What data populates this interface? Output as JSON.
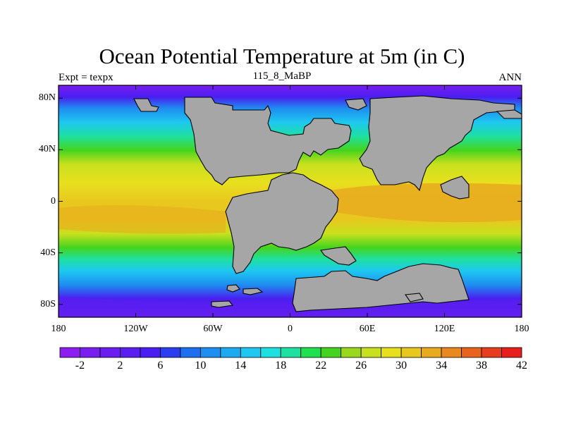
{
  "title": "Ocean Potential Temperature at 5m (in C)",
  "subtitle_left": "Expt = texpx",
  "subtitle_center": "115_8_MaBP",
  "subtitle_right": "ANN",
  "lat_ticks": [
    {
      "label": "80N",
      "lat": 80
    },
    {
      "label": "40N",
      "lat": 40
    },
    {
      "label": "0",
      "lat": 0
    },
    {
      "label": "40S",
      "lat": -40
    },
    {
      "label": "80S",
      "lat": -80
    }
  ],
  "lon_ticks": [
    {
      "label": "180",
      "lon": -180
    },
    {
      "label": "120W",
      "lon": -120
    },
    {
      "label": "60W",
      "lon": -60
    },
    {
      "label": "0",
      "lon": 0
    },
    {
      "label": "60E",
      "lon": 60
    },
    {
      "label": "120E",
      "lon": 120
    },
    {
      "label": "180",
      "lon": 180
    }
  ],
  "colorbar": {
    "colors": [
      "#8c1ef0",
      "#7a1ef0",
      "#6a1ef0",
      "#5a1ef0",
      "#4a1ef0",
      "#2a3ef0",
      "#1e6ef0",
      "#1e8ef0",
      "#1eaaf0",
      "#1ec8f0",
      "#1ee0e0",
      "#1ee0a0",
      "#1ee050",
      "#44d41e",
      "#9ad81e",
      "#c8e01e",
      "#e8e01e",
      "#e8c81e",
      "#e8aa1e",
      "#e8881e",
      "#e8641e",
      "#e83c1e",
      "#e81e1e"
    ],
    "labels": [
      "-2",
      "2",
      "6",
      "10",
      "14",
      "18",
      "22",
      "26",
      "30",
      "34",
      "38",
      "42"
    ],
    "label_positions": [
      1,
      3,
      5,
      7,
      9,
      11,
      13,
      15,
      17,
      19,
      21,
      23
    ]
  },
  "colors": {
    "land": "#a6a6a6",
    "cold": "#7a1ef0",
    "warm": "#e8aa1e"
  }
}
